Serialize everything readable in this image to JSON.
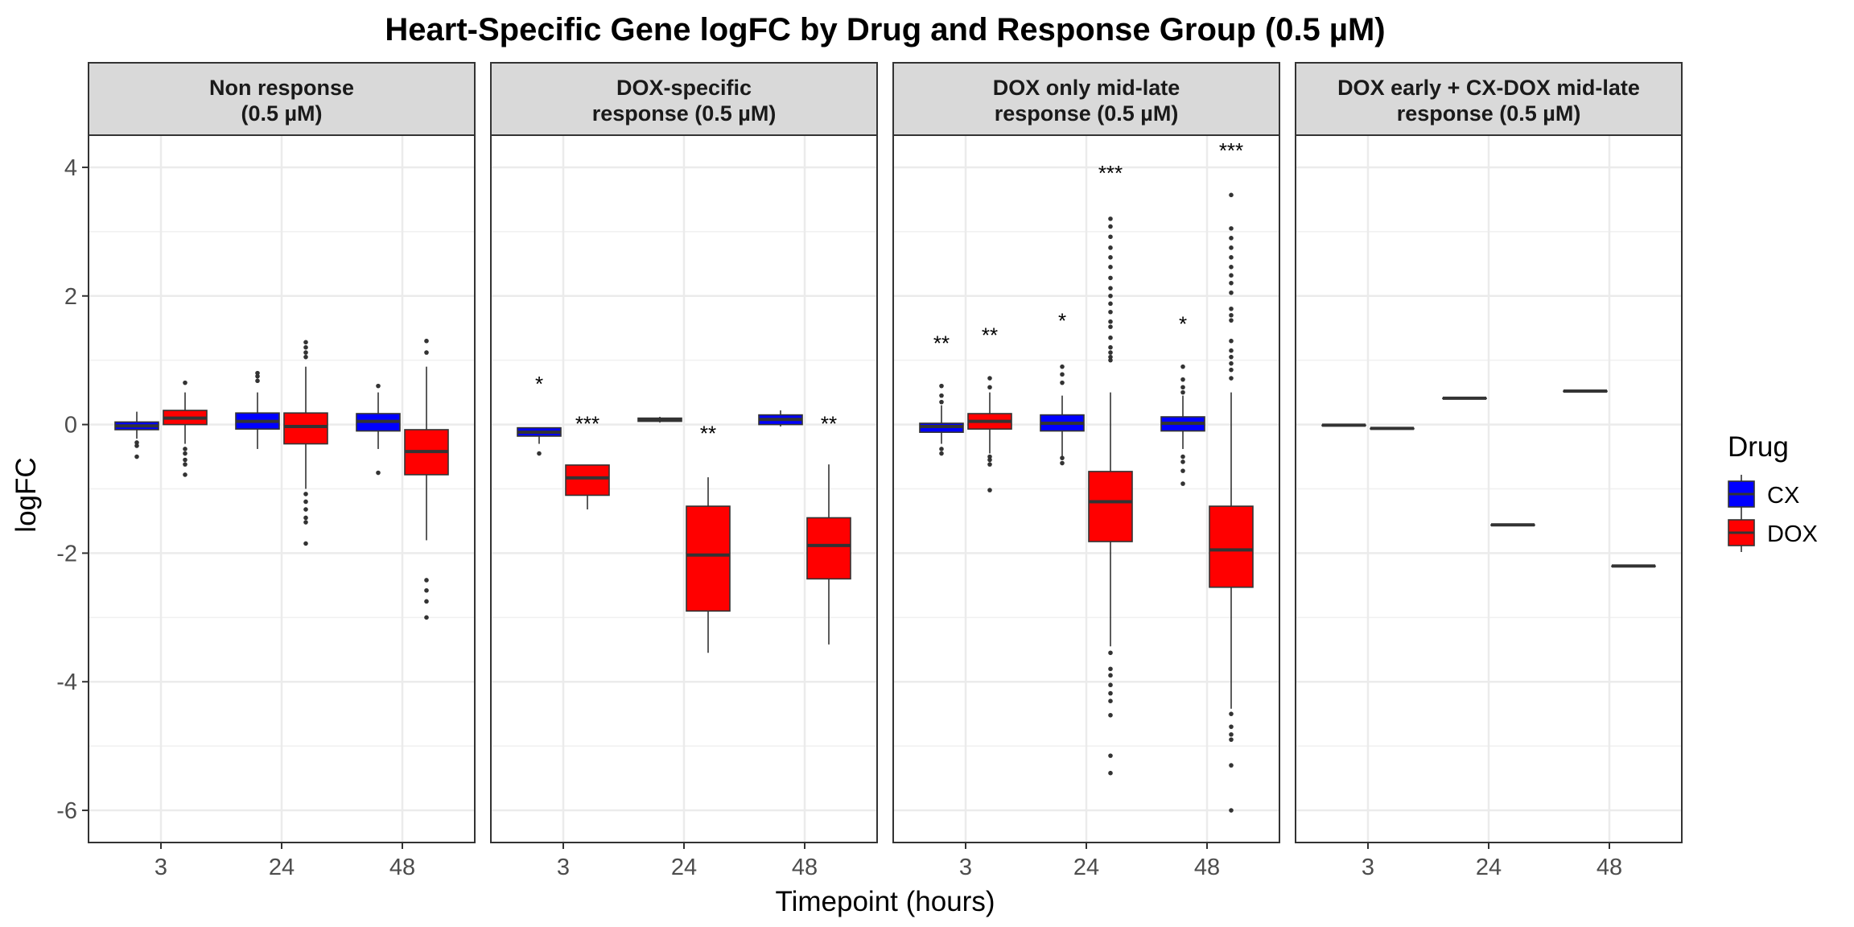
{
  "chart_data": {
    "type": "boxplot",
    "title": "Heart-Specific Gene logFC by Drug and Response Group (0.5 µM)",
    "xlabel": "Timepoint (hours)",
    "ylabel": "logFC",
    "ylim": [
      -6.5,
      4.5
    ],
    "yticks": [
      4,
      2,
      0,
      -2,
      -4,
      -6
    ],
    "xticks": [
      "3",
      "24",
      "48"
    ],
    "grid": true,
    "legend": {
      "title": "Drug",
      "position": "right",
      "items": [
        {
          "name": "CX",
          "color": "#0000FF"
        },
        {
          "name": "DOX",
          "color": "#FF0000"
        }
      ]
    },
    "colors": {
      "CX": "#0000FF",
      "DOX": "#FF0000",
      "strip_bg": "#D9D9D9",
      "median": "#333333"
    },
    "panels": [
      {
        "label_line1": "Non response",
        "label_line2": "(0.5 µM)",
        "boxes": [
          {
            "time": "3",
            "drug": "CX",
            "q1": -0.08,
            "median": -0.02,
            "q3": 0.04,
            "wlo": -0.22,
            "whi": 0.2,
            "outliers": [
              -0.28,
              -0.33,
              -0.5
            ]
          },
          {
            "time": "3",
            "drug": "DOX",
            "q1": 0.0,
            "median": 0.1,
            "q3": 0.22,
            "wlo": -0.3,
            "whi": 0.5,
            "outliers": [
              0.65,
              -0.38,
              -0.45,
              -0.55,
              -0.62,
              -0.78
            ]
          },
          {
            "time": "24",
            "drug": "CX",
            "q1": -0.07,
            "median": 0.05,
            "q3": 0.18,
            "wlo": -0.38,
            "whi": 0.5,
            "outliers": [
              0.68,
              0.75,
              0.8
            ]
          },
          {
            "time": "24",
            "drug": "DOX",
            "q1": -0.3,
            "median": -0.03,
            "q3": 0.18,
            "wlo": -1.0,
            "whi": 0.9,
            "outliers": [
              1.05,
              1.12,
              1.2,
              1.28,
              -1.08,
              -1.2,
              -1.32,
              -1.45,
              -1.52,
              -1.85
            ]
          },
          {
            "time": "48",
            "drug": "CX",
            "q1": -0.1,
            "median": 0.05,
            "q3": 0.17,
            "wlo": -0.38,
            "whi": 0.5,
            "outliers": [
              0.6,
              -0.75
            ]
          },
          {
            "time": "48",
            "drug": "DOX",
            "q1": -0.78,
            "median": -0.42,
            "q3": -0.08,
            "wlo": -1.8,
            "whi": 0.9,
            "outliers": [
              1.12,
              1.3,
              -2.42,
              -2.58,
              -2.75,
              -3.0
            ]
          }
        ],
        "annotations": []
      },
      {
        "label_line1": "DOX-specific",
        "label_line2": "response (0.5 µM)",
        "boxes": [
          {
            "time": "3",
            "drug": "CX",
            "q1": -0.18,
            "median": -0.12,
            "q3": -0.05,
            "wlo": -0.3,
            "whi": -0.05,
            "outliers": [
              -0.45
            ]
          },
          {
            "time": "3",
            "drug": "DOX",
            "q1": -1.1,
            "median": -0.83,
            "q3": -0.63,
            "wlo": -1.32,
            "whi": -0.63,
            "outliers": []
          },
          {
            "time": "24",
            "drug": "CX",
            "q1": 0.05,
            "median": 0.08,
            "q3": 0.1,
            "wlo": 0.03,
            "whi": 0.12,
            "outliers": []
          },
          {
            "time": "24",
            "drug": "DOX",
            "q1": -2.9,
            "median": -2.03,
            "q3": -1.27,
            "wlo": -3.55,
            "whi": -0.82,
            "outliers": []
          },
          {
            "time": "48",
            "drug": "CX",
            "q1": 0.0,
            "median": 0.08,
            "q3": 0.15,
            "wlo": -0.03,
            "whi": 0.22,
            "outliers": []
          },
          {
            "time": "48",
            "drug": "DOX",
            "q1": -2.4,
            "median": -1.88,
            "q3": -1.45,
            "wlo": -3.42,
            "whi": -0.62,
            "outliers": []
          }
        ],
        "annotations": [
          {
            "time": "3",
            "drug": "CX",
            "y": 0.62,
            "label": "*"
          },
          {
            "time": "3",
            "drug": "DOX",
            "y": 0.0,
            "label": "***"
          },
          {
            "time": "24",
            "drug": "DOX",
            "y": -0.15,
            "label": "**"
          },
          {
            "time": "48",
            "drug": "DOX",
            "y": 0.0,
            "label": "**"
          }
        ]
      },
      {
        "label_line1": "DOX only mid-late",
        "label_line2": "response (0.5 µM)",
        "boxes": [
          {
            "time": "3",
            "drug": "CX",
            "q1": -0.12,
            "median": -0.03,
            "q3": 0.02,
            "wlo": -0.3,
            "whi": 0.3,
            "outliers": [
              0.35,
              0.45,
              0.6,
              -0.38,
              -0.45
            ]
          },
          {
            "time": "3",
            "drug": "DOX",
            "q1": -0.07,
            "median": 0.05,
            "q3": 0.17,
            "wlo": -0.45,
            "whi": 0.5,
            "outliers": [
              0.58,
              0.72,
              -0.5,
              -0.55,
              -0.62,
              -1.02
            ]
          },
          {
            "time": "24",
            "drug": "CX",
            "q1": -0.1,
            "median": 0.02,
            "q3": 0.15,
            "wlo": -0.5,
            "whi": 0.45,
            "outliers": [
              0.65,
              0.78,
              0.9,
              -0.52,
              -0.6
            ]
          },
          {
            "time": "24",
            "drug": "DOX",
            "q1": -1.82,
            "median": -1.2,
            "q3": -0.73,
            "wlo": -3.45,
            "whi": 0.5,
            "outliers": [
              1.0,
              1.05,
              1.12,
              1.2,
              1.35,
              1.52,
              1.6,
              1.75,
              1.88,
              2.0,
              2.12,
              2.28,
              2.45,
              2.6,
              2.75,
              2.92,
              3.08,
              3.2,
              -3.55,
              -3.8,
              -3.9,
              -4.05,
              -4.18,
              -4.3,
              -4.52,
              -5.15,
              -5.42
            ]
          },
          {
            "time": "48",
            "drug": "CX",
            "q1": -0.1,
            "median": 0.02,
            "q3": 0.12,
            "wlo": -0.38,
            "whi": 0.45,
            "outliers": [
              0.5,
              0.58,
              0.7,
              0.9,
              -0.5,
              -0.58,
              -0.72,
              -0.92
            ]
          },
          {
            "time": "48",
            "drug": "DOX",
            "q1": -2.53,
            "median": -1.95,
            "q3": -1.27,
            "wlo": -4.42,
            "whi": 0.5,
            "outliers": [
              0.72,
              0.85,
              0.95,
              1.05,
              1.15,
              1.3,
              1.62,
              1.7,
              1.8,
              2.05,
              2.2,
              2.32,
              2.45,
              2.6,
              2.75,
              2.9,
              3.05,
              3.57,
              -4.5,
              -4.7,
              -4.82,
              -4.9,
              -5.3,
              -6.0
            ]
          }
        ],
        "annotations": [
          {
            "time": "3",
            "drug": "CX",
            "y": 1.25,
            "label": "**"
          },
          {
            "time": "3",
            "drug": "DOX",
            "y": 1.38,
            "label": "**"
          },
          {
            "time": "24",
            "drug": "CX",
            "y": 1.6,
            "label": "*"
          },
          {
            "time": "24",
            "drug": "DOX",
            "y": 3.9,
            "label": "***"
          },
          {
            "time": "48",
            "drug": "CX",
            "y": 1.55,
            "label": "*"
          },
          {
            "time": "48",
            "drug": "DOX",
            "y": 4.25,
            "label": "***"
          }
        ]
      },
      {
        "label_line1": "DOX early + CX-DOX mid-late",
        "label_line2": "response (0.5 µM)",
        "boxes": [
          {
            "time": "3",
            "drug": "CX",
            "q1": -0.01,
            "median": -0.01,
            "q3": -0.01,
            "wlo": -0.01,
            "whi": -0.01,
            "outliers": []
          },
          {
            "time": "3",
            "drug": "DOX",
            "q1": -0.06,
            "median": -0.06,
            "q3": -0.06,
            "wlo": -0.06,
            "whi": -0.06,
            "outliers": []
          },
          {
            "time": "24",
            "drug": "CX",
            "q1": 0.41,
            "median": 0.41,
            "q3": 0.41,
            "wlo": 0.41,
            "whi": 0.41,
            "outliers": []
          },
          {
            "time": "24",
            "drug": "DOX",
            "q1": -1.56,
            "median": -1.56,
            "q3": -1.56,
            "wlo": -1.56,
            "whi": -1.56,
            "outliers": []
          },
          {
            "time": "48",
            "drug": "CX",
            "q1": 0.52,
            "median": 0.52,
            "q3": 0.52,
            "wlo": 0.52,
            "whi": 0.52,
            "outliers": []
          },
          {
            "time": "48",
            "drug": "DOX",
            "q1": -2.2,
            "median": -2.2,
            "q3": -2.2,
            "wlo": -2.2,
            "whi": -2.2,
            "outliers": []
          }
        ],
        "annotations": []
      }
    ]
  }
}
